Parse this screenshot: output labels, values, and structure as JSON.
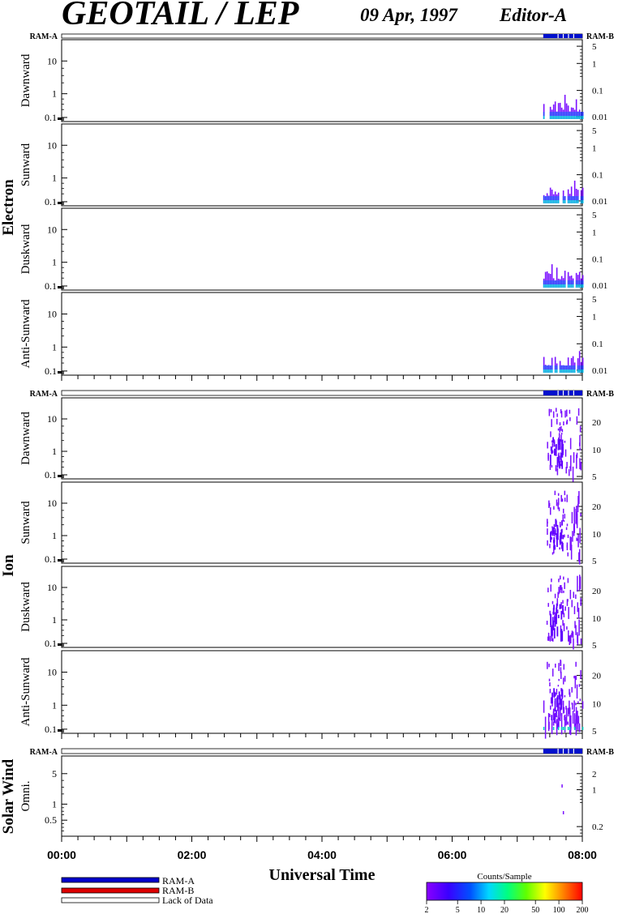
{
  "header": {
    "title": "GEOTAIL / LEP",
    "date": "09 Apr, 1997",
    "editor": "Editor-A"
  },
  "chart_data": {
    "type": "heatmap",
    "xlabel": "Universal Time",
    "x_ticks": [
      "00:00",
      "02:00",
      "04:00",
      "06:00",
      "08:00"
    ],
    "x_range_hours": [
      0,
      8
    ],
    "ram_labels": {
      "left": "RAM-A",
      "right": "RAM-B"
    },
    "groups": [
      {
        "name": "Electron",
        "panels": [
          {
            "name": "Dawnward",
            "left_ticks": [
              "10",
              "1",
              "0.1"
            ],
            "right_ticks": [
              "5",
              "1",
              "0.1",
              "0.01"
            ]
          },
          {
            "name": "Sunward",
            "left_ticks": [
              "10",
              "1",
              "0.1"
            ],
            "right_ticks": [
              "5",
              "1",
              "0.1",
              "0.01"
            ]
          },
          {
            "name": "Duskward",
            "left_ticks": [
              "10",
              "1",
              "0.1"
            ],
            "right_ticks": [
              "5",
              "1",
              "0.1",
              "0.01"
            ]
          },
          {
            "name": "Anti-Sunward",
            "left_ticks": [
              "10",
              "1",
              "0.1"
            ],
            "right_ticks": [
              "5",
              "1",
              "0.1",
              "0.01"
            ]
          }
        ]
      },
      {
        "name": "Ion",
        "panels": [
          {
            "name": "Dawnward",
            "left_ticks": [
              "10",
              "1",
              "0.1"
            ],
            "right_ticks": [
              "20",
              "10",
              "5"
            ]
          },
          {
            "name": "Sunward",
            "left_ticks": [
              "10",
              "1",
              "0.1"
            ],
            "right_ticks": [
              "20",
              "10",
              "5"
            ]
          },
          {
            "name": "Duskward",
            "left_ticks": [
              "10",
              "1",
              "0.1"
            ],
            "right_ticks": [
              "20",
              "10",
              "5"
            ]
          },
          {
            "name": "Anti-Sunward",
            "left_ticks": [
              "10",
              "1",
              "0.1"
            ],
            "right_ticks": [
              "20",
              "10",
              "5"
            ]
          }
        ]
      },
      {
        "name": "Solar Wind",
        "panels": [
          {
            "name": "Omni.",
            "left_ticks": [
              "5",
              "1",
              "0.5"
            ],
            "right_ticks": [
              "2",
              "1",
              "0.2"
            ]
          }
        ]
      }
    ],
    "data_interval_hours": [
      7.4,
      8.0
    ],
    "legend": [
      {
        "label": "RAM-A",
        "color": "#0000cc"
      },
      {
        "label": "RAM-B",
        "color": "#dd0000"
      },
      {
        "label": "Lack of Data",
        "color": "#ffffff"
      }
    ],
    "colorbar": {
      "title": "Counts/Sample",
      "ticks": [
        "2",
        "5",
        "10",
        "20",
        "50",
        "100",
        "200"
      ],
      "tick_values": [
        2,
        5,
        10,
        20,
        50,
        100,
        200
      ],
      "range": [
        2,
        200
      ],
      "scale": "log"
    }
  }
}
